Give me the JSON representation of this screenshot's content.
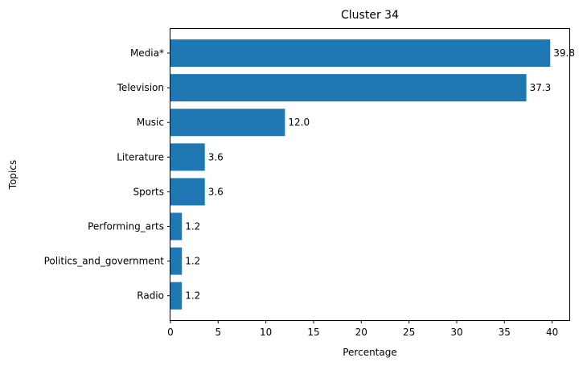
{
  "chart_data": {
    "type": "bar",
    "orientation": "horizontal",
    "title": "Cluster 34",
    "xlabel": "Percentage",
    "ylabel": "Topics",
    "categories": [
      "Media*",
      "Television",
      "Music",
      "Literature",
      "Sports",
      "Performing_arts",
      "Politics_and_government",
      "Radio"
    ],
    "values": [
      39.8,
      37.3,
      12.0,
      3.6,
      3.6,
      1.2,
      1.2,
      1.2
    ],
    "value_labels": [
      "39.8",
      "37.3",
      "12.0",
      "3.6",
      "3.6",
      "1.2",
      "1.2",
      "1.2"
    ],
    "xticks": [
      0,
      5,
      10,
      15,
      20,
      25,
      30,
      35,
      40
    ],
    "xlim": [
      0,
      41.8
    ],
    "bar_color": "#1f77b4",
    "grid": false,
    "legend": "none"
  }
}
